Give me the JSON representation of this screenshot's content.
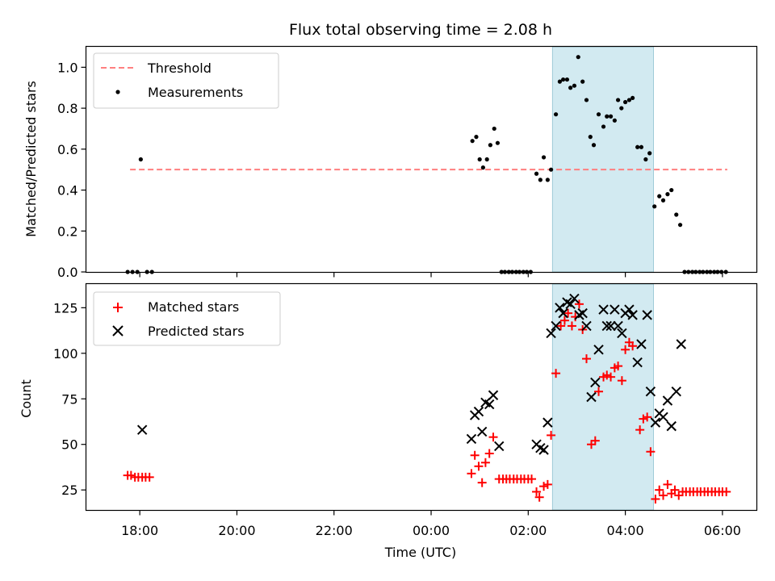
{
  "chart_data": [
    {
      "type": "scatter",
      "title": "Flux total observing time = 2.08 h",
      "xlabel": "",
      "ylabel": "Matched/Predicted stars",
      "x_unit": "hours since 00:00 UTC",
      "xlim": [
        -7.1,
        6.7
      ],
      "ylim": [
        0,
        1.1
      ],
      "yticks": [
        0.0,
        0.2,
        0.4,
        0.6,
        0.8,
        1.0
      ],
      "ytick_labels": [
        "0.0",
        "0.2",
        "0.4",
        "0.6",
        "0.8",
        "1.0"
      ],
      "highlight_span": [
        2.5,
        4.58
      ],
      "threshold": {
        "name": "Threshold",
        "y": 0.5,
        "x_range": [
          -6.2,
          6.1
        ],
        "color": "#ff7f7f",
        "style": "dashed"
      },
      "legend": {
        "placement": "upper left",
        "entries": [
          "Threshold",
          "Measurements"
        ]
      },
      "series": [
        {
          "name": "Measurements",
          "marker": "dot",
          "color": "#000000",
          "points": [
            [
              -6.25,
              0
            ],
            [
              -6.15,
              0
            ],
            [
              -6.05,
              0
            ],
            [
              -5.98,
              0.55
            ],
            [
              -5.85,
              0
            ],
            [
              -5.75,
              0
            ],
            [
              0.85,
              0.64
            ],
            [
              0.93,
              0.66
            ],
            [
              1.0,
              0.55
            ],
            [
              1.07,
              0.51
            ],
            [
              1.15,
              0.55
            ],
            [
              1.22,
              0.62
            ],
            [
              1.3,
              0.7
            ],
            [
              1.37,
              0.63
            ],
            [
              1.45,
              0
            ],
            [
              1.52,
              0
            ],
            [
              1.6,
              0
            ],
            [
              1.67,
              0
            ],
            [
              1.75,
              0
            ],
            [
              1.82,
              0
            ],
            [
              1.9,
              0
            ],
            [
              1.97,
              0
            ],
            [
              2.05,
              0
            ],
            [
              2.17,
              0.48
            ],
            [
              2.25,
              0.45
            ],
            [
              2.32,
              0.56
            ],
            [
              2.4,
              0.45
            ],
            [
              2.47,
              0.5
            ],
            [
              2.57,
              0.77
            ],
            [
              2.65,
              0.93
            ],
            [
              2.72,
              0.94
            ],
            [
              2.8,
              0.94
            ],
            [
              2.87,
              0.9
            ],
            [
              2.95,
              0.91
            ],
            [
              3.03,
              1.05
            ],
            [
              3.12,
              0.93
            ],
            [
              3.2,
              0.84
            ],
            [
              3.28,
              0.66
            ],
            [
              3.35,
              0.62
            ],
            [
              3.45,
              0.77
            ],
            [
              3.55,
              0.71
            ],
            [
              3.62,
              0.76
            ],
            [
              3.7,
              0.76
            ],
            [
              3.78,
              0.74
            ],
            [
              3.85,
              0.84
            ],
            [
              3.92,
              0.8
            ],
            [
              4.0,
              0.83
            ],
            [
              4.08,
              0.84
            ],
            [
              4.15,
              0.85
            ],
            [
              4.25,
              0.61
            ],
            [
              4.33,
              0.61
            ],
            [
              4.42,
              0.55
            ],
            [
              4.5,
              0.58
            ],
            [
              4.6,
              0.32
            ],
            [
              4.7,
              0.37
            ],
            [
              4.78,
              0.35
            ],
            [
              4.87,
              0.38
            ],
            [
              4.95,
              0.4
            ],
            [
              5.05,
              0.28
            ],
            [
              5.13,
              0.23
            ],
            [
              5.22,
              0
            ],
            [
              5.3,
              0
            ],
            [
              5.38,
              0
            ],
            [
              5.45,
              0
            ],
            [
              5.53,
              0
            ],
            [
              5.6,
              0
            ],
            [
              5.68,
              0
            ],
            [
              5.75,
              0
            ],
            [
              5.83,
              0
            ],
            [
              5.9,
              0
            ],
            [
              5.98,
              0
            ],
            [
              6.07,
              0
            ]
          ]
        }
      ]
    },
    {
      "type": "scatter",
      "title": "",
      "xlabel": "Time (UTC)",
      "ylabel": "Count",
      "x_unit": "hours since 00:00 UTC",
      "xlim": [
        -7.1,
        6.7
      ],
      "ylim": [
        14,
        138
      ],
      "yticks": [
        25,
        50,
        75,
        100,
        125
      ],
      "ytick_labels": [
        "25",
        "50",
        "75",
        "100",
        "125"
      ],
      "xticks": [
        -6,
        -4,
        -2,
        0,
        2,
        4,
        6
      ],
      "xtick_labels": [
        "18:00",
        "20:00",
        "22:00",
        "00:00",
        "02:00",
        "04:00",
        "06:00"
      ],
      "highlight_span": [
        2.5,
        4.58
      ],
      "legend": {
        "placement": "upper left",
        "entries": [
          "Matched stars",
          "Predicted stars"
        ]
      },
      "series": [
        {
          "name": "Matched stars",
          "marker": "plus",
          "color": "#ff0000",
          "points": [
            [
              -6.25,
              33
            ],
            [
              -6.18,
              33
            ],
            [
              -6.1,
              32
            ],
            [
              -6.03,
              32
            ],
            [
              -5.95,
              32
            ],
            [
              -5.88,
              32
            ],
            [
              -5.8,
              32
            ],
            [
              0.83,
              34
            ],
            [
              0.9,
              44
            ],
            [
              0.98,
              38
            ],
            [
              1.05,
              29
            ],
            [
              1.12,
              40
            ],
            [
              1.2,
              45
            ],
            [
              1.28,
              54
            ],
            [
              1.4,
              31
            ],
            [
              1.48,
              31
            ],
            [
              1.55,
              31
            ],
            [
              1.62,
              31
            ],
            [
              1.7,
              31
            ],
            [
              1.77,
              31
            ],
            [
              1.85,
              31
            ],
            [
              1.92,
              31
            ],
            [
              2.0,
              31
            ],
            [
              2.07,
              31
            ],
            [
              2.17,
              24
            ],
            [
              2.23,
              21
            ],
            [
              2.32,
              27
            ],
            [
              2.4,
              28
            ],
            [
              2.47,
              55
            ],
            [
              2.57,
              89
            ],
            [
              2.67,
              115
            ],
            [
              2.75,
              118
            ],
            [
              2.82,
              122
            ],
            [
              2.9,
              115
            ],
            [
              2.97,
              120
            ],
            [
              3.05,
              127
            ],
            [
              3.12,
              113
            ],
            [
              3.2,
              97
            ],
            [
              3.3,
              50
            ],
            [
              3.38,
              52
            ],
            [
              3.45,
              79
            ],
            [
              3.55,
              87
            ],
            [
              3.62,
              88
            ],
            [
              3.7,
              87
            ],
            [
              3.78,
              92
            ],
            [
              3.85,
              93
            ],
            [
              3.93,
              85
            ],
            [
              4.0,
              102
            ],
            [
              4.08,
              106
            ],
            [
              4.15,
              104
            ],
            [
              4.3,
              58
            ],
            [
              4.37,
              64
            ],
            [
              4.45,
              65
            ],
            [
              4.52,
              46
            ],
            [
              4.62,
              20
            ],
            [
              4.7,
              25
            ],
            [
              4.78,
              22
            ],
            [
              4.87,
              28
            ],
            [
              4.95,
              23
            ],
            [
              5.02,
              25
            ],
            [
              5.1,
              22
            ],
            [
              5.18,
              24
            ],
            [
              5.25,
              24
            ],
            [
              5.33,
              24
            ],
            [
              5.4,
              24
            ],
            [
              5.48,
              24
            ],
            [
              5.55,
              24
            ],
            [
              5.63,
              24
            ],
            [
              5.7,
              24
            ],
            [
              5.78,
              24
            ],
            [
              5.85,
              24
            ],
            [
              5.93,
              24
            ],
            [
              6.0,
              24
            ],
            [
              6.08,
              24
            ]
          ]
        },
        {
          "name": "Predicted stars",
          "marker": "x",
          "color": "#000000",
          "points": [
            [
              -5.95,
              58
            ],
            [
              0.83,
              53
            ],
            [
              0.9,
              66
            ],
            [
              0.98,
              68
            ],
            [
              1.05,
              57
            ],
            [
              1.12,
              73
            ],
            [
              1.2,
              72
            ],
            [
              1.28,
              77
            ],
            [
              1.4,
              49
            ],
            [
              2.17,
              50
            ],
            [
              2.25,
              48
            ],
            [
              2.32,
              47
            ],
            [
              2.4,
              62
            ],
            [
              2.47,
              111
            ],
            [
              2.57,
              115
            ],
            [
              2.65,
              125
            ],
            [
              2.72,
              122
            ],
            [
              2.8,
              128
            ],
            [
              2.87,
              127
            ],
            [
              2.95,
              130
            ],
            [
              3.05,
              121
            ],
            [
              3.12,
              122
            ],
            [
              3.2,
              115
            ],
            [
              3.3,
              76
            ],
            [
              3.38,
              84
            ],
            [
              3.45,
              102
            ],
            [
              3.55,
              124
            ],
            [
              3.62,
              115
            ],
            [
              3.7,
              115
            ],
            [
              3.78,
              124
            ],
            [
              3.85,
              115
            ],
            [
              3.93,
              111
            ],
            [
              4.0,
              122
            ],
            [
              4.08,
              124
            ],
            [
              4.15,
              121
            ],
            [
              4.25,
              95
            ],
            [
              4.33,
              105
            ],
            [
              4.45,
              121
            ],
            [
              4.52,
              79
            ],
            [
              4.62,
              62
            ],
            [
              4.7,
              67
            ],
            [
              4.78,
              65
            ],
            [
              4.87,
              74
            ],
            [
              4.95,
              60
            ],
            [
              5.05,
              79
            ],
            [
              5.15,
              105
            ]
          ]
        }
      ]
    }
  ],
  "colors": {
    "highlight": "#add8e6",
    "threshold": "#ff7f7f",
    "matched": "#ff0000",
    "predicted": "#000000",
    "measurements": "#000000"
  }
}
